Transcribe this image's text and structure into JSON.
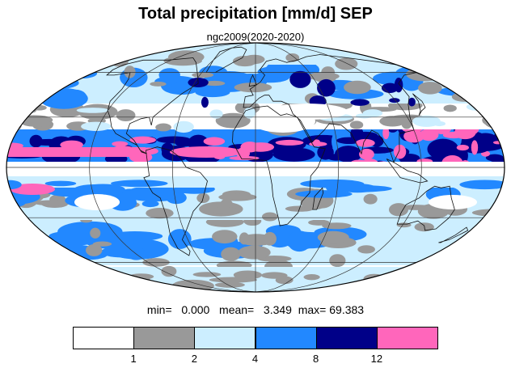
{
  "header": {
    "title": "Total precipitation [mm/d] SEP",
    "subtitle": "ngc2009(2020-2020)"
  },
  "stats": {
    "min_label": "min=",
    "min_value": "0.000",
    "mean_label": "mean=",
    "mean_value": "3.349",
    "max_label": "max=",
    "max_value": "69.383"
  },
  "colorbar": {
    "colors": [
      "#ffffff",
      "#999999",
      "#cceeff",
      "#2288ff",
      "#000088",
      "#ff66bb"
    ],
    "labels": [
      "1",
      "2",
      "4",
      "8",
      "12"
    ]
  },
  "map": {
    "projection": "mollweide",
    "center_longitude": 0,
    "gridlines": true,
    "coastlines": true
  }
}
